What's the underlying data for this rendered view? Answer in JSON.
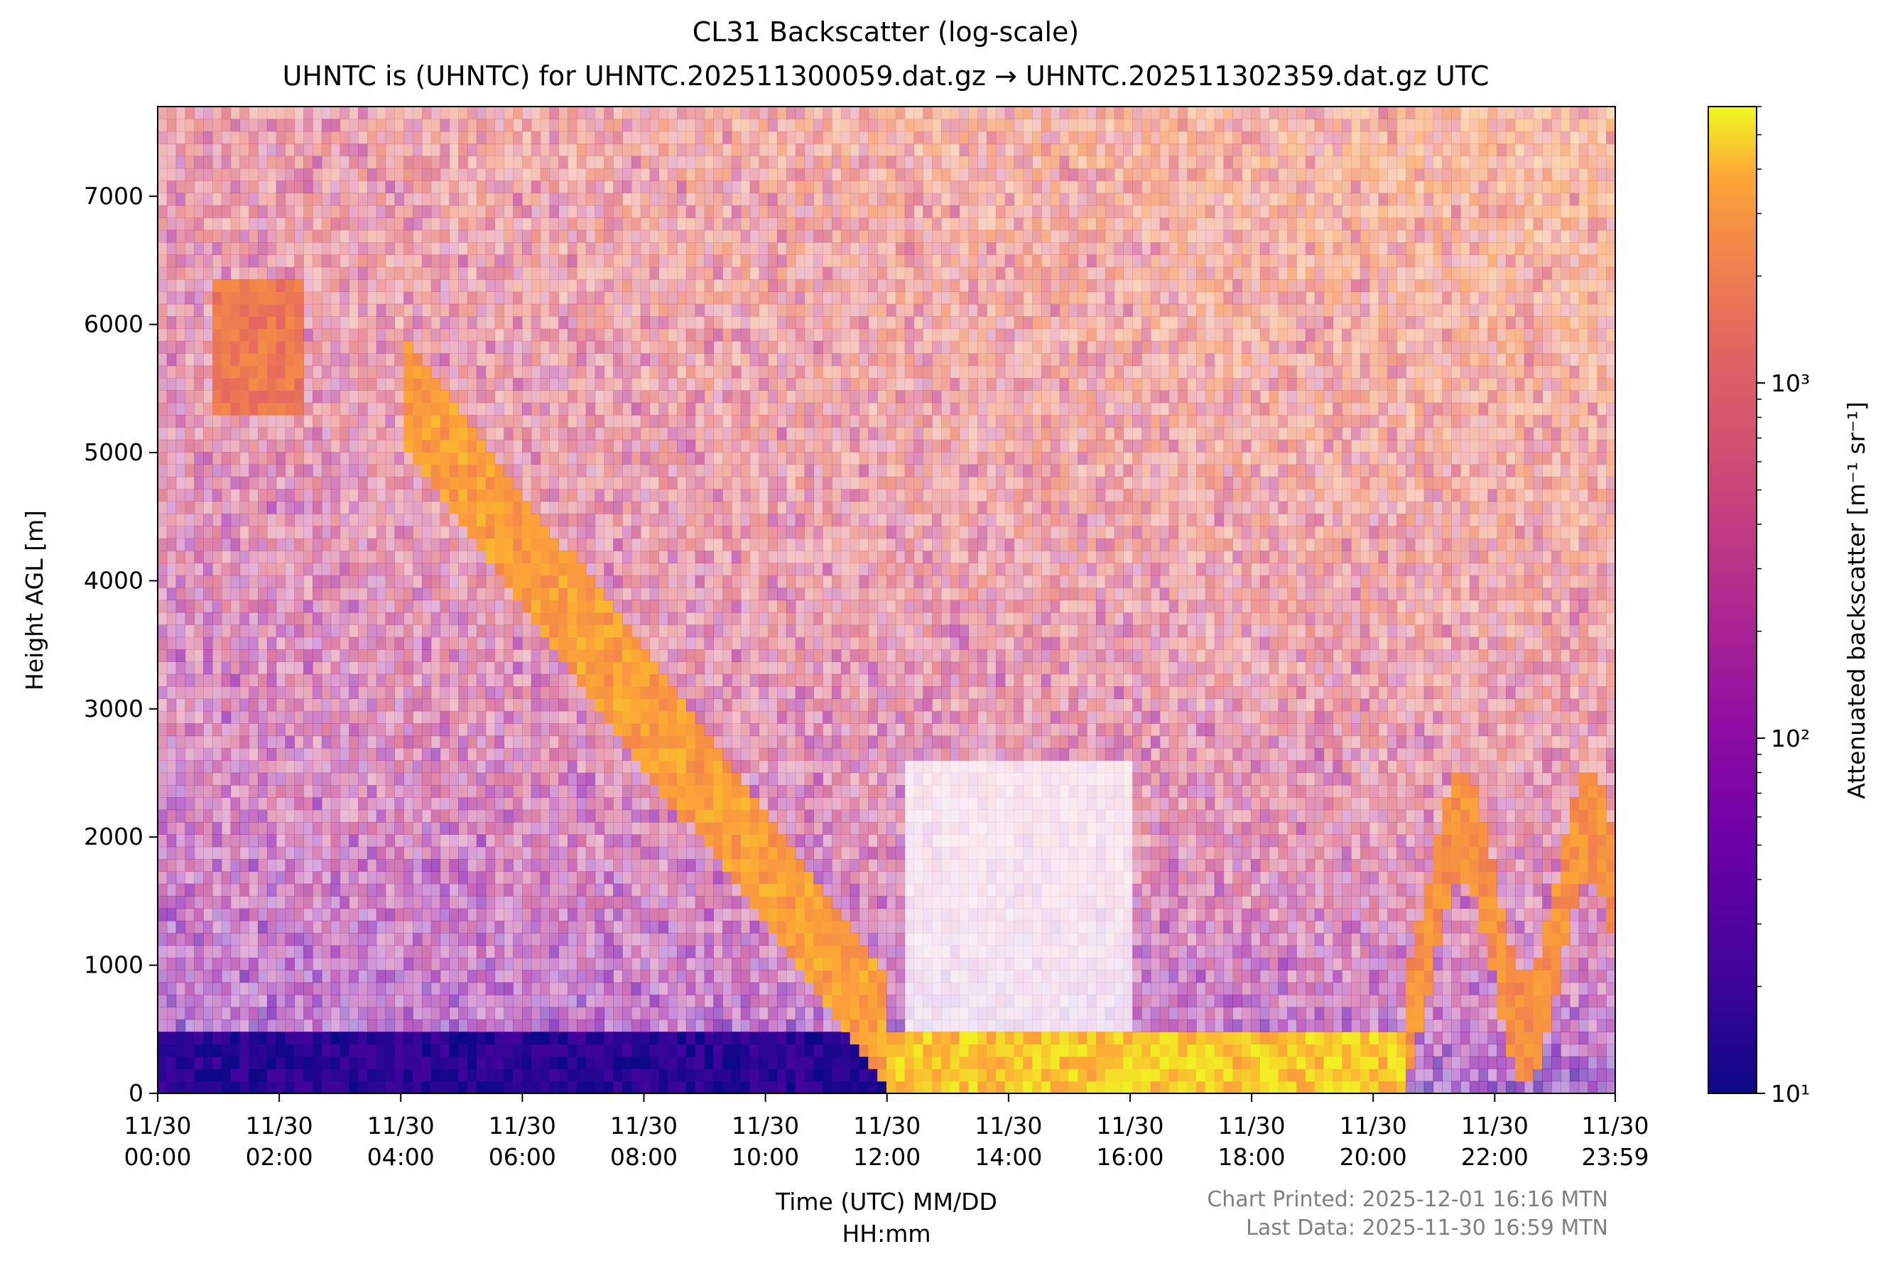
{
  "chart_data": {
    "type": "heatmap",
    "title": "CL31 Backscatter (log-scale)",
    "subtitle": "UHNTC is (UHNTC) for UHNTC.202511300059.dat.gz → UHNTC.202511302359.dat.gz UTC",
    "xlabel_line1": "Time (UTC) MM/DD",
    "xlabel_line2": "HH:mm",
    "ylabel": "Height AGL [m]",
    "x_ticks": [
      {
        "date": "11/30",
        "time": "00:00",
        "hour": 0
      },
      {
        "date": "11/30",
        "time": "02:00",
        "hour": 2
      },
      {
        "date": "11/30",
        "time": "04:00",
        "hour": 4
      },
      {
        "date": "11/30",
        "time": "06:00",
        "hour": 6
      },
      {
        "date": "11/30",
        "time": "08:00",
        "hour": 8
      },
      {
        "date": "11/30",
        "time": "10:00",
        "hour": 10
      },
      {
        "date": "11/30",
        "time": "12:00",
        "hour": 12
      },
      {
        "date": "11/30",
        "time": "14:00",
        "hour": 14
      },
      {
        "date": "11/30",
        "time": "16:00",
        "hour": 16
      },
      {
        "date": "11/30",
        "time": "18:00",
        "hour": 18
      },
      {
        "date": "11/30",
        "time": "20:00",
        "hour": 20
      },
      {
        "date": "11/30",
        "time": "22:00",
        "hour": 22
      },
      {
        "date": "11/30",
        "time": "23:59",
        "hour": 23.983
      }
    ],
    "xlim_hours": [
      0,
      23.983
    ],
    "ylim": [
      0,
      7700
    ],
    "y_ticks": [
      0,
      1000,
      2000,
      3000,
      4000,
      5000,
      6000,
      7000
    ],
    "colormap": "plasma",
    "colorbar": {
      "label": "Attenuated backscatter [m⁻¹ sr⁻¹]",
      "scale": "log",
      "range": [
        10,
        6000
      ],
      "major_ticks": [
        {
          "value": 10,
          "label": "10¹"
        },
        {
          "value": 100,
          "label": "10²"
        },
        {
          "value": 1000,
          "label": "10³"
        }
      ]
    },
    "features": [
      {
        "name": "surface-layer",
        "start_hour": 0,
        "end_hour": 12.0,
        "base_m": 0,
        "top_m": 500,
        "backscatter": 15
      },
      {
        "name": "high-cloud-1",
        "start_hour": 0.9,
        "end_hour": 2.4,
        "base_m": 5300,
        "top_m": 6400,
        "backscatter": 1200
      },
      {
        "name": "cloud-descent",
        "start_hour": 4.0,
        "end_hour": 12.0,
        "base_m": 800,
        "top_m": 5800,
        "backscatter": 2500
      },
      {
        "name": "low-cloud-deck",
        "start_hour": 12.0,
        "end_hour": 20.5,
        "base_m": 0,
        "top_m": 500,
        "backscatter": 4000
      },
      {
        "name": "evening-cloud",
        "start_hour": 20.5,
        "end_hour": 23.983,
        "base_m": 300,
        "top_m": 2300,
        "backscatter": 2000
      }
    ],
    "grid": false
  },
  "footer": {
    "printed": "Chart Printed: 2025-12-01 16:16 MTN",
    "last_data": "Last Data: 2025-11-30 16:59 MTN"
  },
  "colors": {
    "footer_text": "#808080",
    "axis": "#000000",
    "noise_fill": "#ffffff"
  }
}
